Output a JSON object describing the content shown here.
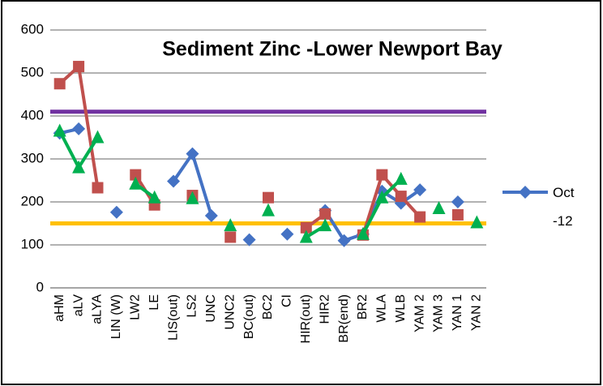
{
  "chart_data": {
    "type": "line",
    "title": "Sediment Zinc  -Lower Newport Bay",
    "categories": [
      "aHM",
      "aLV",
      "aLYA",
      "LIN (W)",
      "LW2",
      "LE",
      "LIS(out)",
      "LS2",
      "UNC",
      "UNC2",
      "BC(out)",
      "BC2",
      "CI",
      "HIR(out)",
      "HIR2",
      "BR(end)",
      "BR2",
      "WLA",
      "WLB",
      "YAM 2",
      "YAM 3",
      "YAN 1",
      "YAN 2"
    ],
    "series": [
      {
        "name": "Oct -12",
        "color": "#4472c4",
        "marker": "diamond",
        "values": [
          360,
          370,
          null,
          176,
          null,
          null,
          248,
          312,
          168,
          null,
          112,
          null,
          125,
          null,
          180,
          110,
          125,
          225,
          197,
          228,
          null,
          200,
          null
        ]
      },
      {
        "color": "#c0504d",
        "marker": "square",
        "values": [
          475,
          515,
          233,
          null,
          263,
          193,
          null,
          215,
          null,
          118,
          null,
          210,
          null,
          140,
          172,
          null,
          123,
          263,
          213,
          165,
          null,
          170,
          null
        ]
      },
      {
        "color": "#00b050",
        "marker": "triangle",
        "values": [
          365,
          280,
          350,
          null,
          242,
          210,
          null,
          208,
          null,
          145,
          null,
          180,
          null,
          118,
          145,
          null,
          125,
          210,
          253,
          null,
          185,
          null,
          152
        ]
      }
    ],
    "reference_lines": [
      {
        "value": 410,
        "color": "#7030a0"
      },
      {
        "value": 150,
        "color": "#ffc000"
      }
    ],
    "ylim": [
      0,
      600
    ],
    "yticks": [
      0,
      100,
      200,
      300,
      400,
      500,
      600
    ],
    "grid": true,
    "legend": "right"
  }
}
